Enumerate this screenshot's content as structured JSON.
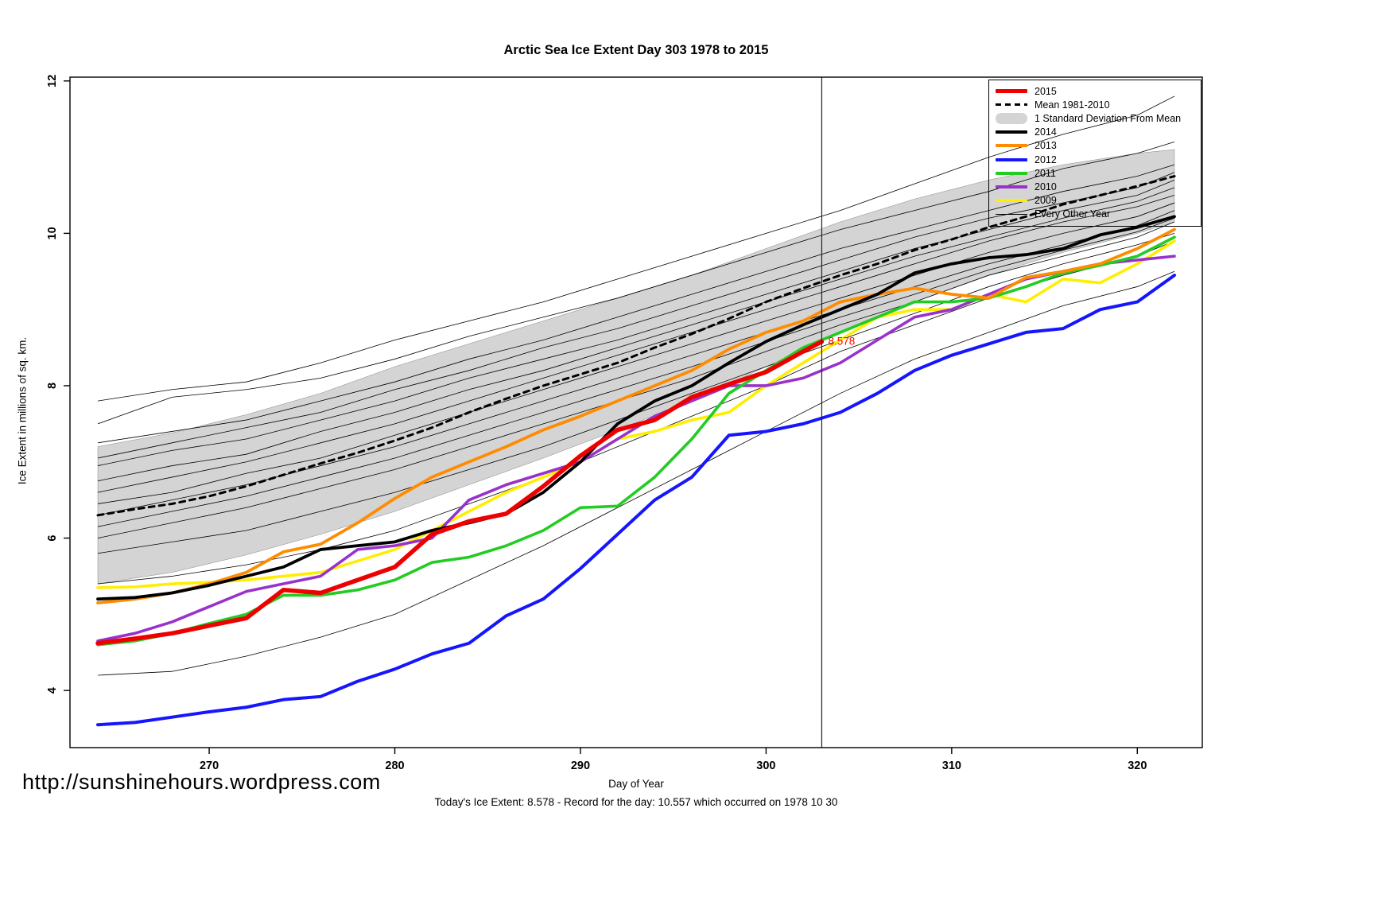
{
  "footer": {
    "url": "http://sunshinehours.wordpress.com",
    "today_line": "Today's Ice Extent: 8.578  - Record for the day: 10.557 which occurred on 1978 10 30"
  },
  "colors": {
    "red_2015": "#EE0000",
    "black": "#000000",
    "band_gray": "#D4D4D4",
    "orange_2013": "#FF8C00",
    "blue_2012": "#1515FF",
    "green_2011": "#22CC22",
    "purple_2010": "#9932CC",
    "yellow_2009": "#FFEE00",
    "annotation_red": "#FF0000"
  },
  "legend": {
    "items": [
      {
        "label": "2015",
        "swatch": "line",
        "color": "#EE0000",
        "thickness": 5
      },
      {
        "label": "Mean 1981-2010",
        "swatch": "dashed",
        "color": "#000000",
        "thickness": 3
      },
      {
        "label": "1 Standard Deviation From Mean",
        "swatch": "band",
        "color": "#D4D4D4",
        "thickness": 14
      },
      {
        "label": "2014",
        "swatch": "line",
        "color": "#000000",
        "thickness": 4
      },
      {
        "label": "2013",
        "swatch": "line",
        "color": "#FF8C00",
        "thickness": 4
      },
      {
        "label": "2012",
        "swatch": "line",
        "color": "#1515FF",
        "thickness": 4
      },
      {
        "label": "2011",
        "swatch": "line",
        "color": "#22CC22",
        "thickness": 4
      },
      {
        "label": "2010",
        "swatch": "line",
        "color": "#9932CC",
        "thickness": 4
      },
      {
        "label": "2009",
        "swatch": "line",
        "color": "#FFEE00",
        "thickness": 4
      },
      {
        "label": "Every Other Year",
        "swatch": "line",
        "color": "#000000",
        "thickness": 1
      }
    ]
  },
  "chart_data": {
    "type": "line",
    "title": "Arctic Sea Ice Extent Day 303 1978 to 2015",
    "xlabel": "Day of Year",
    "ylabel": "Ice Extent in millions of sq. km.",
    "xlim": [
      262.5,
      323.5
    ],
    "ylim": [
      3.25,
      12.05
    ],
    "xticks": [
      270,
      280,
      290,
      300,
      310,
      320
    ],
    "yticks": [
      4,
      6,
      8,
      10,
      12
    ],
    "grid": false,
    "legend_position": "top-right",
    "vline_x": 303,
    "annotation": {
      "text": "8.578",
      "x": 303,
      "y": 8.578,
      "color": "#FF0000"
    },
    "x_days": [
      264,
      266,
      268,
      270,
      272,
      274,
      276,
      278,
      280,
      282,
      284,
      286,
      288,
      290,
      292,
      294,
      296,
      298,
      300,
      302,
      304,
      306,
      308,
      310,
      312,
      314,
      316,
      318,
      320,
      322
    ],
    "x_every4": [
      264,
      268,
      272,
      276,
      280,
      284,
      288,
      292,
      296,
      300,
      304,
      308,
      312,
      316,
      320,
      322
    ],
    "band": {
      "name": "1 Standard Deviation From Mean",
      "color": "#D4D4D4",
      "upper": [
        7.2,
        7.38,
        7.62,
        7.9,
        8.25,
        8.55,
        8.85,
        9.15,
        9.45,
        9.8,
        10.15,
        10.45,
        10.7,
        10.9,
        11.05,
        11.1
      ],
      "lower": [
        5.4,
        5.55,
        5.78,
        6.05,
        6.35,
        6.7,
        7.05,
        7.42,
        7.8,
        8.25,
        8.7,
        9.1,
        9.45,
        9.75,
        10.0,
        10.15
      ]
    },
    "other_years": {
      "name": "Every Other Year",
      "color": "#000000",
      "width": 0.8,
      "lines": [
        [
          7.8,
          7.95,
          8.05,
          8.3,
          8.6,
          8.85,
          9.1,
          9.4,
          9.7,
          10.0,
          10.3,
          10.65,
          11.0,
          11.3,
          11.55,
          11.8
        ],
        [
          7.5,
          7.85,
          7.95,
          8.1,
          8.35,
          8.65,
          8.9,
          9.15,
          9.45,
          9.75,
          10.05,
          10.3,
          10.55,
          10.85,
          11.05,
          11.2
        ],
        [
          7.25,
          7.4,
          7.55,
          7.8,
          8.05,
          8.35,
          8.6,
          8.9,
          9.2,
          9.5,
          9.8,
          10.05,
          10.3,
          10.55,
          10.75,
          10.9
        ],
        [
          7.05,
          7.25,
          7.45,
          7.65,
          7.95,
          8.2,
          8.5,
          8.75,
          9.05,
          9.35,
          9.65,
          9.95,
          10.2,
          10.4,
          10.6,
          10.8
        ],
        [
          6.95,
          7.15,
          7.3,
          7.55,
          7.8,
          8.1,
          8.35,
          8.6,
          8.9,
          9.2,
          9.5,
          9.8,
          10.05,
          10.3,
          10.5,
          10.7
        ],
        [
          6.75,
          6.95,
          7.1,
          7.4,
          7.65,
          7.95,
          8.2,
          8.5,
          8.8,
          9.1,
          9.4,
          9.7,
          9.95,
          10.2,
          10.42,
          10.6
        ],
        [
          6.6,
          6.8,
          7.0,
          7.25,
          7.5,
          7.8,
          8.1,
          8.4,
          8.7,
          9.0,
          9.3,
          9.6,
          9.9,
          10.15,
          10.35,
          10.5
        ],
        [
          6.45,
          6.6,
          6.85,
          7.05,
          7.35,
          7.65,
          7.95,
          8.25,
          8.55,
          8.85,
          9.15,
          9.45,
          9.75,
          10.0,
          10.22,
          10.4
        ],
        [
          6.3,
          6.5,
          6.7,
          6.95,
          7.2,
          7.5,
          7.8,
          8.1,
          8.4,
          8.7,
          9.0,
          9.3,
          9.6,
          9.85,
          10.1,
          10.3
        ],
        [
          6.15,
          6.35,
          6.55,
          6.8,
          7.05,
          7.35,
          7.65,
          7.95,
          8.25,
          8.58,
          8.9,
          9.2,
          9.52,
          9.78,
          10.02,
          10.2
        ],
        [
          6.0,
          6.2,
          6.4,
          6.65,
          6.9,
          7.2,
          7.5,
          7.8,
          8.1,
          8.45,
          8.8,
          9.1,
          9.45,
          9.7,
          9.95,
          10.15
        ],
        [
          5.8,
          5.95,
          6.1,
          6.35,
          6.6,
          6.9,
          7.2,
          7.55,
          7.9,
          8.25,
          8.6,
          8.95,
          9.3,
          9.6,
          9.85,
          10.0
        ],
        [
          5.4,
          5.5,
          5.65,
          5.85,
          6.1,
          6.45,
          6.8,
          7.2,
          7.6,
          8.0,
          8.45,
          8.8,
          9.15,
          9.45,
          9.7,
          9.9
        ],
        [
          4.2,
          4.25,
          4.45,
          4.7,
          5.0,
          5.45,
          5.9,
          6.4,
          6.9,
          7.4,
          7.9,
          8.35,
          8.7,
          9.05,
          9.3,
          9.5
        ]
      ]
    },
    "series": [
      {
        "name": "Mean 1981-2010",
        "color": "#000000",
        "width": 3,
        "dash": "7,6",
        "y": [
          6.3,
          6.38,
          6.45,
          6.55,
          6.68,
          6.83,
          6.98,
          7.12,
          7.28,
          7.45,
          7.65,
          7.83,
          8.0,
          8.15,
          8.3,
          8.5,
          8.68,
          8.88,
          9.1,
          9.28,
          9.45,
          9.6,
          9.78,
          9.92,
          10.08,
          10.22,
          10.38,
          10.5,
          10.62,
          10.75
        ]
      },
      {
        "name": "2009",
        "color": "#FFEE00",
        "width": 3.6,
        "y": [
          5.35,
          5.36,
          5.4,
          5.42,
          5.45,
          5.5,
          5.55,
          5.7,
          5.85,
          6.1,
          6.35,
          6.6,
          6.8,
          7.0,
          7.3,
          7.4,
          7.55,
          7.65,
          8.0,
          8.3,
          8.6,
          8.9,
          9.0,
          9.0,
          9.2,
          9.1,
          9.4,
          9.35,
          9.6,
          9.9
        ]
      },
      {
        "name": "2010",
        "color": "#9932CC",
        "width": 3.6,
        "y": [
          4.65,
          4.75,
          4.9,
          5.1,
          5.3,
          5.4,
          5.5,
          5.85,
          5.9,
          6.0,
          6.5,
          6.7,
          6.85,
          7.0,
          7.3,
          7.6,
          7.8,
          8.0,
          8.0,
          8.1,
          8.3,
          8.6,
          8.9,
          9.0,
          9.2,
          9.4,
          9.5,
          9.6,
          9.65,
          9.7
        ]
      },
      {
        "name": "2011",
        "color": "#22CC22",
        "width": 3.6,
        "y": [
          4.6,
          4.65,
          4.75,
          4.88,
          5.0,
          5.25,
          5.25,
          5.32,
          5.45,
          5.68,
          5.75,
          5.9,
          6.1,
          6.4,
          6.42,
          6.8,
          7.3,
          7.9,
          8.2,
          8.5,
          8.7,
          8.9,
          9.1,
          9.1,
          9.15,
          9.3,
          9.48,
          9.58,
          9.7,
          9.95
        ]
      },
      {
        "name": "2012",
        "color": "#1515FF",
        "width": 4,
        "y": [
          3.55,
          3.58,
          3.65,
          3.72,
          3.78,
          3.88,
          3.92,
          4.12,
          4.28,
          4.48,
          4.62,
          4.98,
          5.2,
          5.6,
          6.05,
          6.5,
          6.8,
          7.35,
          7.4,
          7.5,
          7.65,
          7.9,
          8.2,
          8.4,
          8.55,
          8.7,
          8.75,
          9.0,
          9.1,
          9.45
        ]
      },
      {
        "name": "2013",
        "color": "#FF8C00",
        "width": 3.8,
        "y": [
          5.15,
          5.2,
          5.28,
          5.4,
          5.55,
          5.82,
          5.92,
          6.2,
          6.52,
          6.8,
          7.0,
          7.2,
          7.42,
          7.6,
          7.8,
          8.0,
          8.2,
          8.48,
          8.7,
          8.85,
          9.1,
          9.2,
          9.28,
          9.2,
          9.15,
          9.42,
          9.5,
          9.6,
          9.8,
          10.05
        ]
      },
      {
        "name": "2014",
        "color": "#000000",
        "width": 3.8,
        "y": [
          5.2,
          5.22,
          5.28,
          5.38,
          5.5,
          5.62,
          5.85,
          5.9,
          5.95,
          6.1,
          6.2,
          6.32,
          6.6,
          7.0,
          7.5,
          7.8,
          8.0,
          8.3,
          8.58,
          8.8,
          9.0,
          9.2,
          9.48,
          9.6,
          9.68,
          9.72,
          9.8,
          9.98,
          10.08,
          10.22
        ]
      },
      {
        "name": "2015",
        "color": "#EE0000",
        "width": 5.5,
        "x": [
          264,
          266,
          268,
          270,
          272,
          274,
          276,
          278,
          280,
          282,
          284,
          286,
          288,
          290,
          292,
          294,
          296,
          298,
          300,
          302,
          303
        ],
        "y": [
          4.62,
          4.68,
          4.75,
          4.85,
          4.95,
          5.32,
          5.28,
          5.45,
          5.62,
          6.05,
          6.22,
          6.32,
          6.68,
          7.08,
          7.42,
          7.55,
          7.85,
          8.02,
          8.18,
          8.45,
          8.578
        ]
      }
    ]
  }
}
